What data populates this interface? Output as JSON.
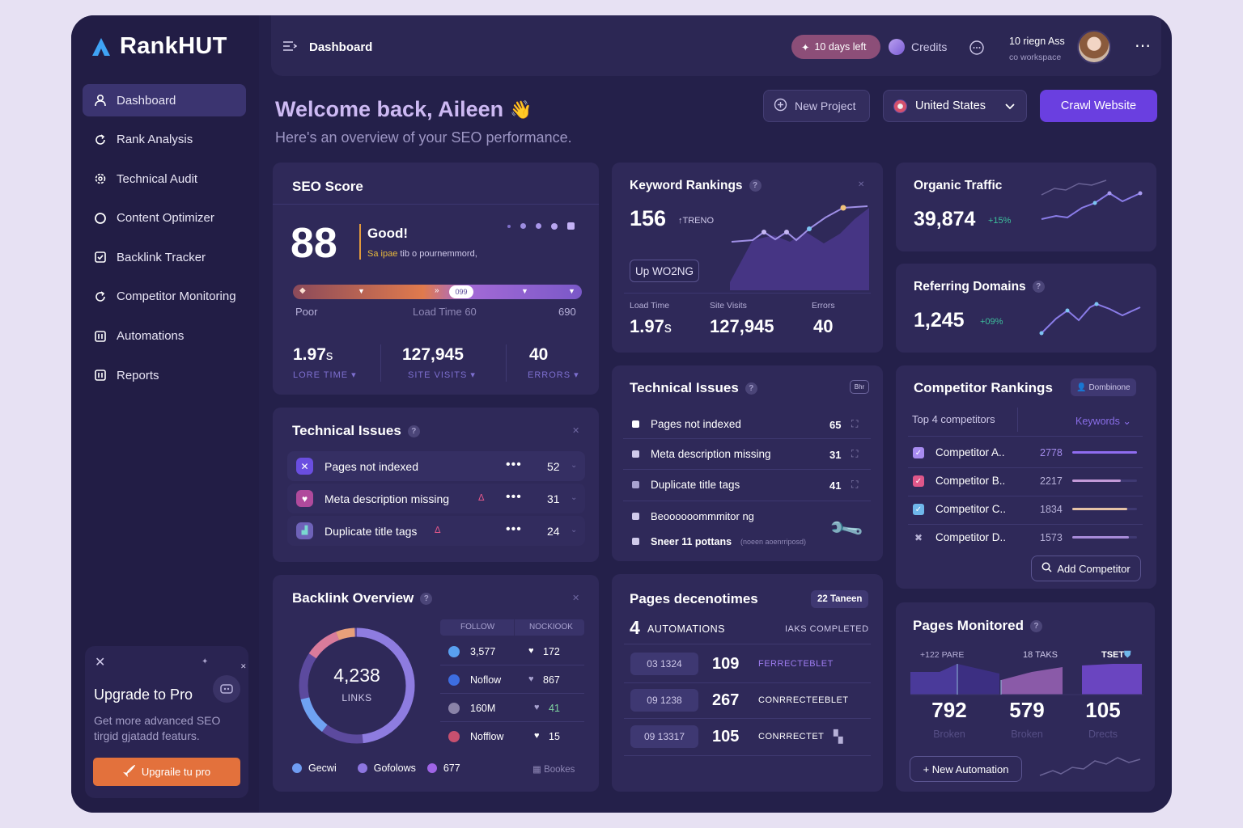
{
  "app": {
    "name": "RankHUT"
  },
  "sidebar": {
    "items": [
      {
        "label": "Dashboard",
        "icon": "user-outline-icon"
      },
      {
        "label": "Rank Analysis",
        "icon": "refresh-icon"
      },
      {
        "label": "Technical Audit",
        "icon": "gear-icon"
      },
      {
        "label": "Content Optimizer",
        "icon": "circle-icon"
      },
      {
        "label": "Backlink Tracker",
        "icon": "checkbox-icon"
      },
      {
        "label": "Competitor Monitoring",
        "icon": "refresh-icon"
      },
      {
        "label": "Automations",
        "icon": "grid-icon"
      },
      {
        "label": "Reports",
        "icon": "grid-icon"
      }
    ]
  },
  "upgrade": {
    "title": "Upgrade to Pro",
    "text": "Get more advanced SEO tirgid gjatadd featurs.",
    "button": "Upgraile tu pro"
  },
  "topbar": {
    "title": "Dashboard",
    "trial": "10 days left",
    "credits": "Credits",
    "user_name": "10 riegn Ass",
    "user_sub": "co workspace"
  },
  "welcome": {
    "heading": "Welcome back, Aileen",
    "subtitle": "Here's an overview of your SEO performance."
  },
  "actions": {
    "new_project": "New Project",
    "country": "United States",
    "crawl": "Crawl Website"
  },
  "seo_score": {
    "title": "SEO Score",
    "score": "88",
    "rating": "Good!",
    "note_a": "Sa ipae",
    "note_b": "tib o pournemmord,",
    "slider_pill": "099",
    "label_left": "Poor",
    "label_mid": "Load Time 60",
    "label_right": "690",
    "stats": [
      {
        "value": "1.97",
        "unit": "s",
        "label": "LORE TIME"
      },
      {
        "value": "127,945",
        "unit": "",
        "label": "SITE VISITS"
      },
      {
        "value": "40",
        "unit": "",
        "label": "ERRORS"
      }
    ]
  },
  "tech_left": {
    "title": "Technical Issues",
    "rows": [
      {
        "label": "Pages not indexed",
        "value": "52"
      },
      {
        "label": "Meta description missing",
        "value": "31"
      },
      {
        "label": "Duplicate title tags",
        "value": "24"
      }
    ]
  },
  "backlink": {
    "title": "Backlink Overview",
    "total": "4,238",
    "total_label": "LINKS",
    "col_a": "FOLLOW",
    "col_b": "NOCKIOOK",
    "rows": [
      {
        "left": "3,577",
        "right": "172",
        "color": "#59a0f0"
      },
      {
        "left": "Noflow",
        "right": "867",
        "color": "#3d6de0"
      },
      {
        "left": "160M",
        "right": "41",
        "color": "#8a83a8"
      },
      {
        "left": "Nofflow",
        "right": "15",
        "color": "#c7506f"
      }
    ],
    "legend": [
      {
        "label": "Gecwi",
        "color": "#6f9cf2"
      },
      {
        "label": "Gofolows",
        "color": "#8d76e0"
      },
      {
        "label": "677",
        "color": "#9f64e6"
      }
    ],
    "legend_right": "Bookes"
  },
  "keyword": {
    "title": "Keyword Rankings",
    "value": "156",
    "trend": "TRENO",
    "badge": "Up WO2NG",
    "stats": [
      {
        "label": "Load Time",
        "value": "1.97",
        "unit": "s"
      },
      {
        "label": "Site Visits",
        "value": "127,945",
        "unit": ""
      },
      {
        "label": "Errors",
        "value": "40",
        "unit": ""
      }
    ]
  },
  "tech_mid": {
    "title": "Technical Issues",
    "badge": "Bhr",
    "rows": [
      {
        "label": "Pages not indexed",
        "value": "65"
      },
      {
        "label": "Meta description missing",
        "value": "31"
      },
      {
        "label": "Duplicate title tags",
        "value": "41"
      },
      {
        "label": "Beoooooommmitor ng",
        "value": ""
      },
      {
        "label": "Sneer 11 pottans",
        "value": "",
        "note": "(noeen aoenrriposd)"
      }
    ]
  },
  "pages_dec": {
    "title": "Pages decenotimes",
    "badge": "22 Taneen",
    "count": "4",
    "count_label": "AUTOMATIONS",
    "right_label": "IAKS COMPLETED",
    "rows": [
      {
        "code": "03 1324",
        "value": "109",
        "label": "FERRECTEBLET"
      },
      {
        "code": "09 1238",
        "value": "267",
        "label": "CONRRECTEEBLET"
      },
      {
        "code": "09 13317",
        "value": "105",
        "label": "CONRRECTET"
      }
    ]
  },
  "organic": {
    "title": "Organic Traffic",
    "value": "39,874",
    "change": "+15%"
  },
  "referring": {
    "title": "Referring Domains",
    "value": "1,245",
    "change": "+09%"
  },
  "competitors": {
    "title": "Competitor Rankings",
    "badge": "Dombinone",
    "subtitle": "Top 4 competitors",
    "sort": "Keywords",
    "rows": [
      {
        "name": "Competitor A..",
        "value": "2778",
        "fill": 1.0,
        "color": "#8f6cf0",
        "check": "#a78bf0"
      },
      {
        "name": "Competitor B..",
        "value": "2217",
        "fill": 0.75,
        "color": "#c39ad8",
        "check": "#e0578a"
      },
      {
        "name": "Competitor C..",
        "value": "1834",
        "fill": 0.85,
        "color": "#e5c3a6",
        "check": "#6fb7ea"
      },
      {
        "name": "Competitor D..",
        "value": "1573",
        "fill": 0.88,
        "color": "#a78bd8",
        "check": "#b5b0d3"
      }
    ],
    "add": "Add Competitor"
  },
  "pages_monitored": {
    "title": "Pages Monitored",
    "heads": [
      "+122 PARE",
      "18 TAKS",
      "TSET"
    ],
    "stats": [
      {
        "value": "792",
        "label": "Broken"
      },
      {
        "value": "579",
        "label": "Broken"
      },
      {
        "value": "105",
        "label": "Drects"
      }
    ],
    "button": "+ New Automation"
  }
}
